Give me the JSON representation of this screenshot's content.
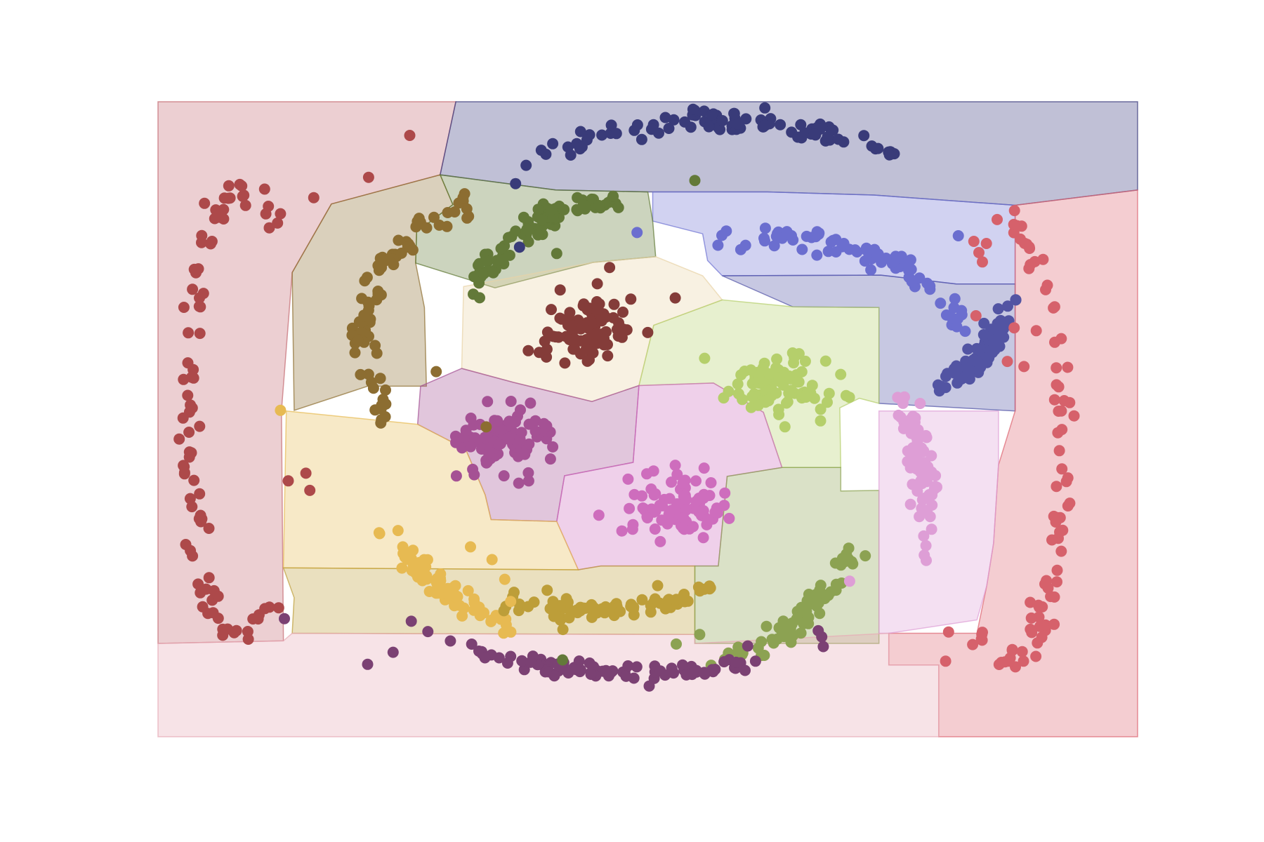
{
  "chart_data": {
    "type": "scatter",
    "title": "",
    "xlabel": "",
    "ylabel": "",
    "xlim": [
      0,
      100
    ],
    "ylim": [
      0,
      100
    ],
    "grid": false,
    "axes_visible": false,
    "legend": "none",
    "decision_regions": true,
    "region_opacity": 0.32,
    "regions": [
      {
        "cluster": 0,
        "color": "#c46b72",
        "poly": [
          [
            0,
            100
          ],
          [
            30.4,
            100
          ],
          [
            28.8,
            88.5
          ],
          [
            17.7,
            83.9
          ],
          [
            13.7,
            73.1
          ],
          [
            12.6,
            51.3
          ],
          [
            12.8,
            15.1
          ],
          [
            0,
            14.7
          ]
        ]
      },
      {
        "cluster": 1,
        "color": "#3b3b7e",
        "poly": [
          [
            30.4,
            100
          ],
          [
            100,
            100
          ],
          [
            100,
            86.1
          ],
          [
            87.5,
            83.7
          ],
          [
            73.1,
            85.3
          ],
          [
            62.2,
            85.8
          ],
          [
            50,
            85.8
          ],
          [
            40.6,
            86.1
          ],
          [
            28.8,
            88.5
          ]
        ]
      },
      {
        "cluster": 2,
        "color": "#6f74d3",
        "poly": [
          [
            50.5,
            85.8
          ],
          [
            62.2,
            85.8
          ],
          [
            73.1,
            85.3
          ],
          [
            87.5,
            83.7
          ],
          [
            87.5,
            71.3
          ],
          [
            81.5,
            71.3
          ],
          [
            73.8,
            72.7
          ],
          [
            57.6,
            72.6
          ],
          [
            56.1,
            75
          ],
          [
            55.6,
            79.2
          ],
          [
            50.5,
            81.2
          ]
        ]
      },
      {
        "cluster": 3,
        "color": "#5153a6",
        "poly": [
          [
            57.6,
            72.6
          ],
          [
            73.8,
            72.7
          ],
          [
            81.5,
            71.3
          ],
          [
            87.5,
            71.3
          ],
          [
            87.5,
            51.3
          ],
          [
            73.6,
            52.5
          ],
          [
            73.6,
            67.6
          ],
          [
            64.8,
            67.7
          ]
        ]
      },
      {
        "cluster": 4,
        "color": "#dd6470",
        "poly": [
          [
            87.5,
            83.7
          ],
          [
            100,
            86.1
          ],
          [
            100,
            0
          ],
          [
            79.7,
            0
          ],
          [
            79.7,
            11.3
          ],
          [
            74.6,
            11.3
          ],
          [
            74.6,
            16.3
          ],
          [
            83.6,
            16.3
          ],
          [
            84.6,
            23.8
          ],
          [
            85.3,
            30.5
          ],
          [
            85.8,
            42.8
          ],
          [
            87.5,
            51.3
          ]
        ]
      },
      {
        "cluster": 5,
        "color": "#8d6e2f",
        "poly": [
          [
            17.7,
            83.9
          ],
          [
            28.8,
            88.5
          ],
          [
            30.1,
            83.8
          ],
          [
            26.4,
            79.5
          ],
          [
            26.3,
            74.6
          ],
          [
            27.2,
            67.6
          ],
          [
            27.4,
            55.2
          ],
          [
            21.4,
            55.2
          ],
          [
            13.9,
            51.4
          ],
          [
            13.7,
            73.1
          ]
        ]
      },
      {
        "cluster": 6,
        "color": "#5f7935",
        "poly": [
          [
            28.8,
            88.5
          ],
          [
            40.6,
            86.1
          ],
          [
            50,
            85.8
          ],
          [
            50.5,
            81.2
          ],
          [
            50.8,
            75.6
          ],
          [
            44.4,
            74.7
          ],
          [
            34.4,
            70.7
          ],
          [
            26.3,
            74.6
          ],
          [
            26.4,
            79.5
          ],
          [
            30.1,
            83.8
          ]
        ]
      },
      {
        "cluster": 7,
        "color": "#e8d3a6",
        "poly": [
          [
            31.2,
            70.9
          ],
          [
            44.4,
            74.7
          ],
          [
            50.8,
            75.6
          ],
          [
            55.6,
            72.6
          ],
          [
            57.6,
            68.8
          ],
          [
            50.6,
            64.8
          ],
          [
            49.1,
            55.3
          ],
          [
            44.3,
            52.8
          ],
          [
            36.3,
            55.8
          ],
          [
            31,
            58
          ]
        ]
      },
      {
        "cluster": 8,
        "color": "#b5cf6b",
        "poly": [
          [
            50.6,
            64.8
          ],
          [
            57.6,
            68.8
          ],
          [
            64.8,
            67.7
          ],
          [
            73.6,
            67.6
          ],
          [
            73.6,
            52.5
          ],
          [
            71.6,
            53.3
          ],
          [
            69.6,
            51.8
          ],
          [
            69.7,
            42.4
          ],
          [
            63.7,
            42.4
          ],
          [
            61.8,
            51.1
          ],
          [
            56.7,
            55.7
          ],
          [
            49.1,
            55.3
          ]
        ]
      },
      {
        "cluster": 9,
        "color": "#a34f93",
        "poly": [
          [
            26.8,
            55.2
          ],
          [
            31,
            58
          ],
          [
            36.3,
            55.8
          ],
          [
            44.3,
            52.8
          ],
          [
            49.1,
            55.3
          ],
          [
            48.5,
            43.2
          ],
          [
            41.5,
            41.1
          ],
          [
            40.7,
            33.9
          ],
          [
            34,
            34.2
          ],
          [
            33.4,
            38.1
          ],
          [
            31.4,
            45.3
          ],
          [
            26.5,
            49.2
          ]
        ]
      },
      {
        "cluster": 10,
        "color": "#ce6dbd",
        "poly": [
          [
            41.5,
            41.1
          ],
          [
            48.5,
            43.2
          ],
          [
            49.1,
            55.3
          ],
          [
            56.7,
            55.7
          ],
          [
            61.8,
            51.1
          ],
          [
            63.7,
            42.4
          ],
          [
            58.1,
            41
          ],
          [
            57.2,
            26.9
          ],
          [
            45.2,
            26.9
          ],
          [
            42.9,
            26.3
          ],
          [
            40.7,
            33.9
          ]
        ]
      },
      {
        "cluster": 11,
        "color": "#e7ba52",
        "poly": [
          [
            13.1,
            51.3
          ],
          [
            26.5,
            49.2
          ],
          [
            31.4,
            45.3
          ],
          [
            33.4,
            38.1
          ],
          [
            34,
            34.2
          ],
          [
            40.7,
            33.9
          ],
          [
            42.9,
            26.3
          ],
          [
            12.8,
            26.6
          ]
        ]
      },
      {
        "cluster": 12,
        "color": "#bd9e39",
        "poly": [
          [
            12.8,
            26.6
          ],
          [
            42.9,
            26.3
          ],
          [
            45.2,
            26.9
          ],
          [
            54.8,
            26.9
          ],
          [
            54.8,
            16.1
          ],
          [
            13.7,
            16.3
          ],
          [
            13.9,
            21.9
          ]
        ]
      },
      {
        "cluster": 13,
        "color": "#8ca252",
        "poly": [
          [
            54.8,
            26.9
          ],
          [
            57.2,
            26.9
          ],
          [
            58.1,
            41
          ],
          [
            63.7,
            42.4
          ],
          [
            69.7,
            42.4
          ],
          [
            69.7,
            38.7
          ],
          [
            73.6,
            38.8
          ],
          [
            73.6,
            14.7
          ],
          [
            54.8,
            14.7
          ]
        ]
      },
      {
        "cluster": 14,
        "color": "#de9ed6",
        "poly": [
          [
            73.6,
            51.3
          ],
          [
            85.8,
            51.3
          ],
          [
            85.8,
            42.8
          ],
          [
            85.3,
            30.5
          ],
          [
            84.6,
            23.8
          ],
          [
            83.6,
            18.4
          ],
          [
            74.6,
            16.3
          ],
          [
            73.6,
            16.3
          ]
        ]
      },
      {
        "cluster": 15,
        "color": "#e7a9b5",
        "poly": [
          [
            0,
            0
          ],
          [
            79.7,
            0
          ],
          [
            79.7,
            11.3
          ],
          [
            74.6,
            11.3
          ],
          [
            74.6,
            16.3
          ],
          [
            54.8,
            14.7
          ],
          [
            54.8,
            16.1
          ],
          [
            13.7,
            16.3
          ],
          [
            12.8,
            15.1
          ],
          [
            0,
            14.7
          ]
        ]
      }
    ],
    "series": [
      {
        "cluster": 0,
        "color": "#ad494a",
        "shape": "arc",
        "cx": 8.4,
        "cy": 51,
        "rx": 5.4,
        "ry": 35,
        "a0": 60,
        "a1": 300,
        "width": 1.2,
        "n": 92
      },
      {
        "cluster": 1,
        "color": "#393b79",
        "shape": "arc",
        "cx": 57,
        "cy": 72,
        "rx": 28,
        "ry": 25,
        "a0": 50,
        "a1": 135,
        "width": 1.0,
        "n": 90
      },
      {
        "cluster": 2,
        "color": "#6b6ecf",
        "shape": "arc",
        "cx": 61.5,
        "cy": 59,
        "rx": 21.5,
        "ry": 20,
        "a0": 15,
        "a1": 100,
        "width": 1.0,
        "n": 78
      },
      {
        "cluster": 3,
        "color": "#5254a3",
        "shape": "arc",
        "cx": 69,
        "cy": 70,
        "rx": 18,
        "ry": 18,
        "a0": -55,
        "a1": -5,
        "width": 1.0,
        "n": 70
      },
      {
        "cluster": 4,
        "color": "#d6616b",
        "shape": "arc",
        "cx": 86.6,
        "cy": 46,
        "rx": 5.8,
        "ry": 35,
        "a0": -118,
        "a1": 118,
        "width": 1.1,
        "n": 90
      },
      {
        "cluster": 5,
        "color": "#8c6d31",
        "shape": "arc",
        "cx": 35,
        "cy": 63,
        "rx": 14,
        "ry": 21,
        "a0": 105,
        "a1": 215,
        "width": 1.1,
        "n": 80
      },
      {
        "cluster": 6,
        "color": "#637939",
        "shape": "arc",
        "cx": 46,
        "cy": 56,
        "rx": 16,
        "ry": 28,
        "a0": 85,
        "a1": 150,
        "width": 1.1,
        "n": 82
      },
      {
        "cluster": 7,
        "color": "#843c39",
        "shape": "blob",
        "cx": 44,
        "cy": 64,
        "sx": 2.3,
        "sy": 2.6,
        "n": 90
      },
      {
        "cluster": 8,
        "color": "#b5cf6b",
        "shape": "blob",
        "cx": 63,
        "cy": 55,
        "sx": 2.6,
        "sy": 2.3,
        "n": 88
      },
      {
        "cluster": 9,
        "color": "#a55194",
        "shape": "blob",
        "cx": 35.5,
        "cy": 47,
        "sx": 2.3,
        "sy": 2.6,
        "n": 88
      },
      {
        "cluster": 10,
        "color": "#ce6dbd",
        "shape": "blob",
        "cx": 53.3,
        "cy": 36.5,
        "sx": 2.4,
        "sy": 2.4,
        "n": 90
      },
      {
        "cluster": 11,
        "color": "#e7ba52",
        "shape": "arc",
        "cx": 45,
        "cy": 66,
        "rx": 28,
        "ry": 52,
        "a0": 220,
        "a1": 250,
        "width": 1.0,
        "n": 78
      },
      {
        "cluster": 12,
        "color": "#bd9e39",
        "shape": "arc",
        "cx": 44,
        "cy": 42,
        "rx": 25,
        "ry": 22,
        "a0": 252,
        "a1": 300,
        "width": 0.9,
        "n": 82
      },
      {
        "cluster": 13,
        "color": "#8ca252",
        "shape": "arc",
        "cx": 55,
        "cy": 54,
        "rx": 19.5,
        "ry": 42,
        "a0": 278,
        "a1": 322,
        "width": 1.0,
        "n": 76
      },
      {
        "cluster": 14,
        "color": "#de9ed6",
        "shape": "arc",
        "cx": 70,
        "cy": 36,
        "rx": 8.6,
        "ry": 22,
        "a0": -18,
        "a1": 52,
        "width": 1.1,
        "n": 78
      },
      {
        "cluster": 15,
        "color": "#7b4173",
        "shape": "arc",
        "cx": 49,
        "cy": 37,
        "rx": 33,
        "ry": 27,
        "a0": 225,
        "a1": 305,
        "width": 0.7,
        "n": 88
      }
    ],
    "extra_points": [
      {
        "cluster": 0,
        "x": 25.7,
        "y": 94.7
      },
      {
        "cluster": 0,
        "x": 21.5,
        "y": 88.1
      },
      {
        "cluster": 0,
        "x": 15.9,
        "y": 84.9
      },
      {
        "cluster": 0,
        "x": 12.2,
        "y": 80.9
      },
      {
        "cluster": 0,
        "x": 13.3,
        "y": 40.3
      },
      {
        "cluster": 0,
        "x": 15.5,
        "y": 38.8
      },
      {
        "cluster": 0,
        "x": 15.1,
        "y": 41.5
      },
      {
        "cluster": 4,
        "x": 83.5,
        "y": 66.3
      },
      {
        "cluster": 4,
        "x": 87.4,
        "y": 64.4
      },
      {
        "cluster": 4,
        "x": 86.7,
        "y": 59.1
      },
      {
        "cluster": 4,
        "x": 88.4,
        "y": 58.3
      },
      {
        "cluster": 4,
        "x": 80.7,
        "y": 16.5
      },
      {
        "cluster": 4,
        "x": 84.1,
        "y": 16.1
      },
      {
        "cluster": 4,
        "x": 80.4,
        "y": 11.9
      },
      {
        "cluster": 1,
        "x": 36.9,
        "y": 77.1
      },
      {
        "cluster": 1,
        "x": 36.5,
        "y": 87.1
      },
      {
        "cluster": 3,
        "x": 81.5,
        "y": 58.4
      },
      {
        "cluster": 2,
        "x": 48.9,
        "y": 79.4
      },
      {
        "cluster": 2,
        "x": 81.7,
        "y": 78.9
      },
      {
        "cluster": 6,
        "x": 42.8,
        "y": 84.9
      },
      {
        "cluster": 6,
        "x": 54.8,
        "y": 87.6
      },
      {
        "cluster": 6,
        "x": 40.7,
        "y": 76.1
      },
      {
        "cluster": 6,
        "x": 41.3,
        "y": 12.1
      },
      {
        "cluster": 5,
        "x": 28.4,
        "y": 57.5
      },
      {
        "cluster": 5,
        "x": 33.5,
        "y": 48.8
      },
      {
        "cluster": 5,
        "x": 22.0,
        "y": 54.9
      },
      {
        "cluster": 7,
        "x": 46.1,
        "y": 73.9
      },
      {
        "cluster": 7,
        "x": 52.8,
        "y": 69.1
      },
      {
        "cluster": 7,
        "x": 37.8,
        "y": 60.8
      },
      {
        "cluster": 8,
        "x": 55.8,
        "y": 59.6
      },
      {
        "cluster": 9,
        "x": 39.4,
        "y": 49.3
      },
      {
        "cluster": 10,
        "x": 45.0,
        "y": 34.9
      },
      {
        "cluster": 11,
        "x": 12.5,
        "y": 51.4
      },
      {
        "cluster": 11,
        "x": 34.1,
        "y": 27.9
      },
      {
        "cluster": 11,
        "x": 35.4,
        "y": 24.8
      },
      {
        "cluster": 11,
        "x": 31.9,
        "y": 29.9
      },
      {
        "cluster": 11,
        "x": 36.0,
        "y": 21.3
      },
      {
        "cluster": 12,
        "x": 51.0,
        "y": 23.8
      },
      {
        "cluster": 13,
        "x": 52.9,
        "y": 14.6
      },
      {
        "cluster": 13,
        "x": 55.3,
        "y": 16.1
      },
      {
        "cluster": 14,
        "x": 70.6,
        "y": 24.5
      },
      {
        "cluster": 14,
        "x": 76.2,
        "y": 53.5
      },
      {
        "cluster": 15,
        "x": 12.9,
        "y": 18.6
      },
      {
        "cluster": 15,
        "x": 24.0,
        "y": 13.3
      },
      {
        "cluster": 15,
        "x": 21.4,
        "y": 11.4
      },
      {
        "cluster": 15,
        "x": 60.2,
        "y": 14.3
      },
      {
        "cluster": 15,
        "x": 61.0,
        "y": 11.9
      },
      {
        "cluster": 15,
        "x": 67.4,
        "y": 16.7
      }
    ]
  }
}
